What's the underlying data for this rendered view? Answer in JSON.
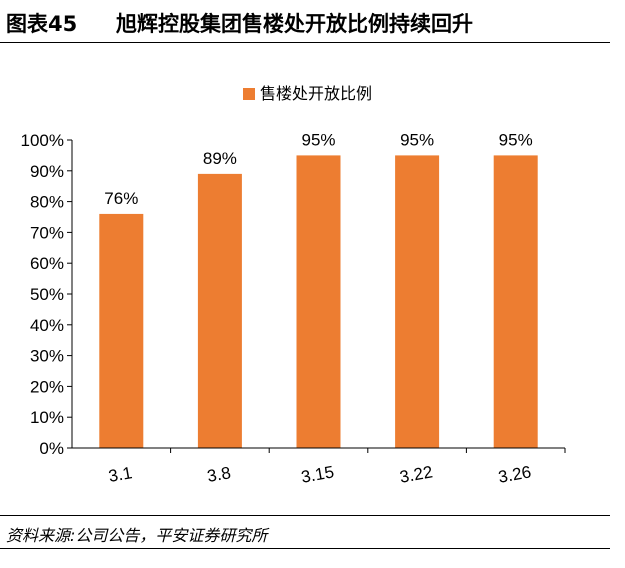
{
  "header": {
    "figure_label": "图表45",
    "title": "旭辉控股集团售楼处开放比例持续回升"
  },
  "footer": {
    "source": "资料来源:公司公告，平安证券研究所"
  },
  "colors": {
    "bar": "#ED7D31",
    "axis": "#000000"
  },
  "chart_data": {
    "type": "bar",
    "categories": [
      "3.1",
      "3.8",
      "3.15",
      "3.22",
      "3.26"
    ],
    "series": [
      {
        "name": "售楼处开放比例",
        "values": [
          76,
          89,
          95,
          95,
          95
        ]
      }
    ],
    "data_labels": [
      "76%",
      "89%",
      "95%",
      "95%",
      "95%"
    ],
    "y_ticks": [
      "0%",
      "10%",
      "20%",
      "30%",
      "40%",
      "50%",
      "60%",
      "70%",
      "80%",
      "90%",
      "100%"
    ],
    "ylim": [
      0,
      100
    ],
    "grid": false,
    "legend": "top-center"
  }
}
